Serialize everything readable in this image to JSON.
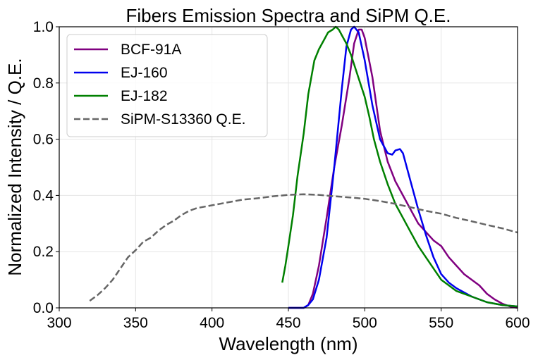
{
  "chart_data": {
    "type": "line",
    "title": "Fibers Emission Spectra and SiPM Q.E.",
    "xlabel": "Wavelength (nm)",
    "ylabel": "Normalized Intensity / Q.E.",
    "xlim": [
      300,
      600
    ],
    "ylim": [
      0.0,
      1.0
    ],
    "xticks": [
      300,
      350,
      400,
      450,
      500,
      550,
      600
    ],
    "xtick_labels": [
      "300",
      "350",
      "400",
      "450",
      "500",
      "550",
      "600"
    ],
    "yticks": [
      0.0,
      0.2,
      0.4,
      0.6,
      0.8,
      1.0
    ],
    "ytick_labels": [
      "0.0",
      "0.2",
      "0.4",
      "0.6",
      "0.8",
      "1.0"
    ],
    "grid": true,
    "legend_position": "top-left",
    "series": [
      {
        "name": "BCF-91A",
        "color": "#800080",
        "dash": "solid",
        "x": [
          450,
          460,
          463,
          466,
          470,
          475,
          480,
          485,
          490,
          493,
          496,
          498,
          500,
          505,
          510,
          515,
          520,
          525,
          530,
          535,
          540,
          545,
          550,
          555,
          560,
          565,
          570,
          575,
          580,
          585,
          590,
          595,
          600
        ],
        "y": [
          0.0,
          0.0,
          0.01,
          0.05,
          0.15,
          0.32,
          0.5,
          0.65,
          0.82,
          0.94,
          0.99,
          0.99,
          0.96,
          0.82,
          0.63,
          0.52,
          0.45,
          0.4,
          0.35,
          0.3,
          0.27,
          0.24,
          0.22,
          0.18,
          0.15,
          0.12,
          0.1,
          0.08,
          0.05,
          0.03,
          0.015,
          0.005,
          0.0
        ]
      },
      {
        "name": "EJ-160",
        "color": "#0000ee",
        "dash": "solid",
        "x": [
          450,
          460,
          463,
          466,
          470,
          475,
          480,
          485,
          488,
          491,
          493,
          496,
          500,
          505,
          510,
          515,
          518,
          520,
          523,
          525,
          530,
          535,
          540,
          545,
          550,
          555,
          560,
          570,
          580,
          590,
          600
        ],
        "y": [
          0.0,
          0.0,
          0.01,
          0.03,
          0.1,
          0.25,
          0.5,
          0.78,
          0.93,
          0.99,
          1.0,
          0.98,
          0.88,
          0.72,
          0.6,
          0.55,
          0.545,
          0.56,
          0.565,
          0.55,
          0.45,
          0.35,
          0.26,
          0.18,
          0.12,
          0.09,
          0.07,
          0.04,
          0.02,
          0.01,
          0.005
        ]
      },
      {
        "name": "EJ-182",
        "color": "#008000",
        "dash": "solid",
        "x": [
          446,
          448,
          450,
          453,
          456,
          460,
          463,
          467,
          470,
          473,
          476,
          479,
          481,
          483,
          485,
          488,
          491,
          494,
          497,
          500,
          503,
          506,
          510,
          515,
          520,
          525,
          530,
          535,
          540,
          545,
          550,
          560,
          570,
          580,
          590,
          600
        ],
        "y": [
          0.09,
          0.15,
          0.22,
          0.33,
          0.47,
          0.62,
          0.76,
          0.88,
          0.92,
          0.95,
          0.98,
          0.99,
          1.0,
          0.99,
          0.97,
          0.94,
          0.9,
          0.85,
          0.8,
          0.75,
          0.68,
          0.6,
          0.52,
          0.44,
          0.37,
          0.32,
          0.27,
          0.22,
          0.18,
          0.14,
          0.1,
          0.06,
          0.04,
          0.02,
          0.01,
          0.005
        ]
      },
      {
        "name": "SiPM-S13360 Q.E.",
        "color": "#666666",
        "dash": "dashed",
        "x": [
          320,
          325,
          330,
          335,
          340,
          345,
          350,
          355,
          360,
          365,
          370,
          375,
          380,
          385,
          390,
          400,
          410,
          420,
          430,
          440,
          450,
          460,
          470,
          480,
          490,
          500,
          510,
          520,
          530,
          540,
          550,
          560,
          570,
          580,
          590,
          600
        ],
        "y": [
          0.025,
          0.045,
          0.07,
          0.1,
          0.14,
          0.18,
          0.205,
          0.235,
          0.25,
          0.275,
          0.295,
          0.31,
          0.33,
          0.345,
          0.355,
          0.365,
          0.375,
          0.385,
          0.39,
          0.397,
          0.402,
          0.404,
          0.402,
          0.397,
          0.393,
          0.388,
          0.38,
          0.37,
          0.358,
          0.345,
          0.335,
          0.32,
          0.308,
          0.295,
          0.283,
          0.268
        ]
      }
    ]
  }
}
